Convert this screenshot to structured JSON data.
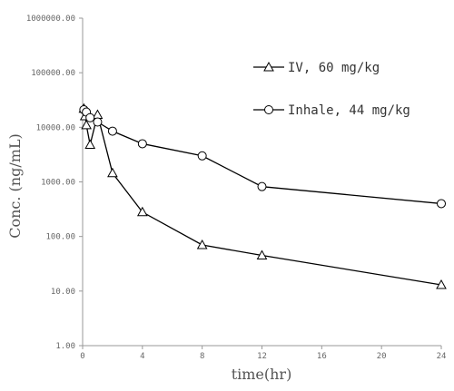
{
  "chart_data": {
    "type": "line",
    "title": "",
    "xlabel": "time(hr)",
    "ylabel": "Conc. (ng/mL)",
    "x_scale": "linear",
    "y_scale": "log",
    "xlim": [
      0,
      24
    ],
    "ylim": [
      1,
      1000000
    ],
    "x_ticks": [
      0,
      4,
      8,
      12,
      16,
      20,
      24
    ],
    "x_tick_labels": [
      "0",
      "4",
      "8",
      "12",
      "16",
      "20",
      "24"
    ],
    "y_ticks": [
      1,
      10,
      100,
      1000,
      10000,
      100000,
      1000000
    ],
    "y_tick_labels": [
      "1.00",
      "10.00",
      "100.00",
      "1000.00",
      "10000.00",
      "100000.00",
      "1000000.00"
    ],
    "grid": false,
    "legend_position": "top-right",
    "series": [
      {
        "name": "IV, 60 mg/kg",
        "marker": "triangle",
        "color": "#000000",
        "x": [
          0.083,
          0.167,
          0.25,
          0.5,
          1,
          2,
          4,
          8,
          12,
          24
        ],
        "y": [
          22000,
          16000,
          11000,
          4800,
          17000,
          1450,
          280,
          70,
          45,
          13
        ]
      },
      {
        "name": "Inhale, 44 mg/kg",
        "marker": "circle",
        "color": "#000000",
        "x": [
          0.083,
          0.25,
          0.5,
          1,
          2,
          4,
          8,
          12,
          24
        ],
        "y": [
          21000,
          19000,
          15000,
          12500,
          8500,
          5000,
          3000,
          820,
          400
        ]
      }
    ]
  }
}
